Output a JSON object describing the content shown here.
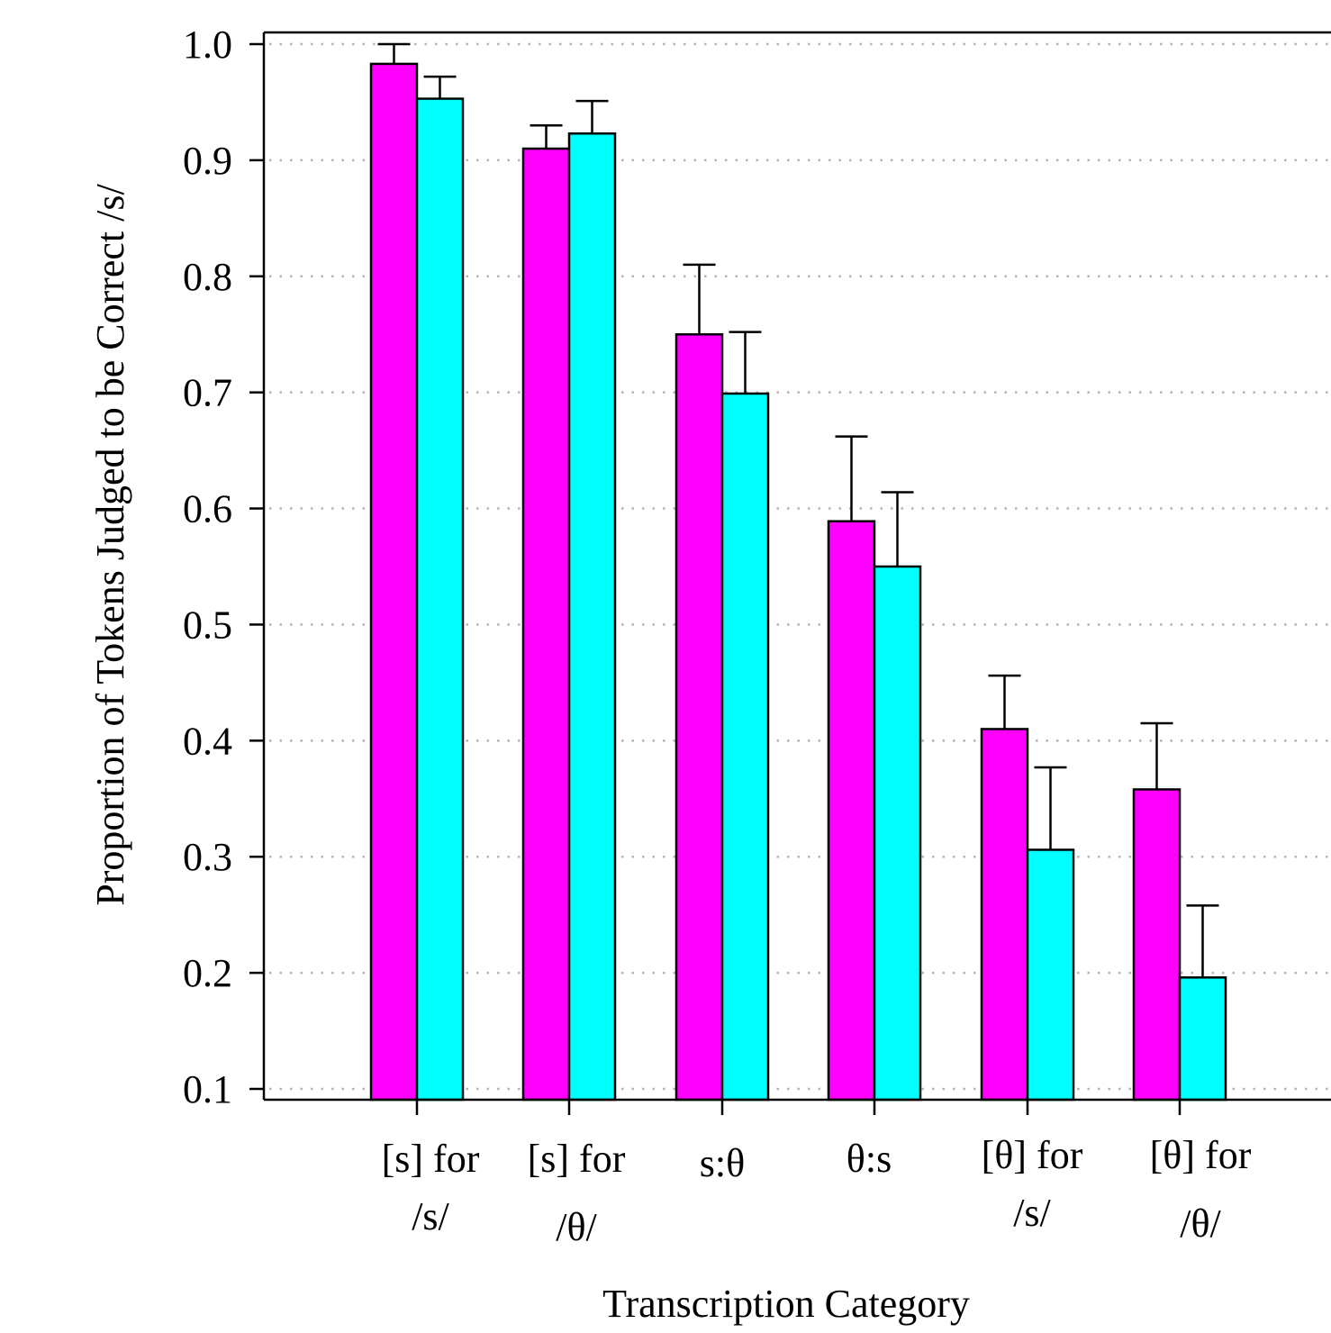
{
  "chart_data": {
    "type": "bar",
    "title": "",
    "xlabel": "Transcription Category",
    "ylabel": "Proportion of Tokens Judged to be Correct /s/",
    "ylim": [
      0.1,
      1.0
    ],
    "yticks": [
      "0.1",
      "0.2",
      "0.3",
      "0.4",
      "0.5",
      "0.6",
      "0.7",
      "0.8",
      "0.9",
      "1.0"
    ],
    "grid": "horizontal dotted",
    "categories": [
      [
        "[s] for",
        "/s/"
      ],
      [
        "[s] for",
        "/θ/"
      ],
      [
        "s:θ"
      ],
      [
        "θ:s"
      ],
      [
        "[θ] for",
        "/s/"
      ],
      [
        "[θ] for",
        "/θ/"
      ]
    ],
    "series": [
      {
        "color": "#ff00ff",
        "values": [
          0.983,
          0.91,
          0.75,
          0.589,
          0.41,
          0.358
        ],
        "error_upper": [
          1.0,
          0.93,
          0.81,
          0.662,
          0.456,
          0.415
        ]
      },
      {
        "color": "#00ffff",
        "values": [
          0.953,
          0.923,
          0.699,
          0.55,
          0.306,
          0.196
        ],
        "error_upper": [
          0.972,
          0.951,
          0.752,
          0.614,
          0.377,
          0.258
        ]
      }
    ]
  }
}
